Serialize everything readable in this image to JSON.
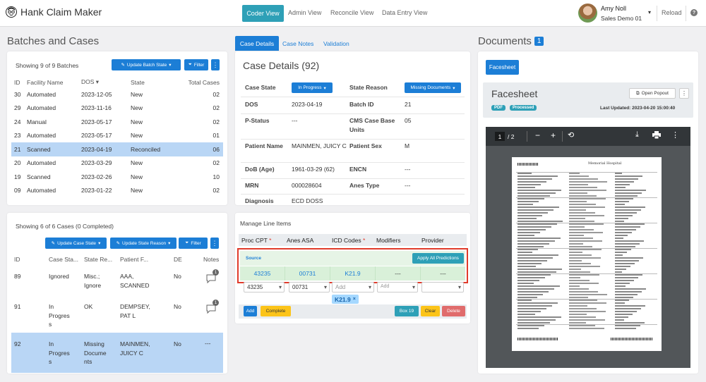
{
  "app": {
    "title": "Hank Claim Maker"
  },
  "nav": {
    "items": [
      "Coder View",
      "Admin View",
      "Reconcile View",
      "Data Entry View"
    ],
    "active": "Coder View"
  },
  "user": {
    "name": "Amy Noll",
    "org": "Sales Demo 01",
    "reload": "Reload",
    "help": "?"
  },
  "batches": {
    "title": "Batches and Cases",
    "summary": "Showing 9 of 9 Batches",
    "update_btn": "Update Batch State",
    "filter_btn": "Filter",
    "more": "⋮",
    "headers": [
      "ID",
      "Facility Name",
      "DOS",
      "State",
      "Total Cases"
    ],
    "rows": [
      [
        "30",
        "Automated",
        "2023-12-05",
        "New",
        "02"
      ],
      [
        "29",
        "Automated",
        "2023-11-16",
        "New",
        "02"
      ],
      [
        "24",
        "Manual",
        "2023-05-17",
        "New",
        "02"
      ],
      [
        "23",
        "Automated",
        "2023-05-17",
        "New",
        "01"
      ],
      [
        "21",
        "Scanned",
        "2023-04-19",
        "Reconciled",
        "06"
      ],
      [
        "20",
        "Automated",
        "2023-03-29",
        "New",
        "02"
      ],
      [
        "19",
        "Scanned",
        "2023-02-26",
        "New",
        "10"
      ],
      [
        "09",
        "Automated",
        "2023-01-22",
        "New",
        "02"
      ]
    ],
    "selected_row": 4
  },
  "cases": {
    "summary": "Showing 6 of 6 Cases (0 Completed)",
    "update_state_btn": "Update Case State",
    "update_reason_btn": "Update State Reason",
    "filter_btn": "Filter",
    "more": "⋮",
    "headers": [
      "ID",
      "Case Sta...",
      "State Re...",
      "Patient F...",
      "DE",
      "Notes"
    ],
    "rows": [
      {
        "id": "89",
        "state": "Ignored",
        "reason": "Misc.;\nIgnore",
        "patient": "AAA,\nSCANNED",
        "de": "No",
        "notes": "1"
      },
      {
        "id": "91",
        "state": "In\nProgres\ns",
        "reason": "OK",
        "patient": "DEMPSEY,\nPAT L",
        "de": "No",
        "notes": "1"
      },
      {
        "id": "92",
        "state": "In\nProgres\ns",
        "reason": "Missing\nDocume\nnts",
        "patient": "MAINMEN,\nJUICY C",
        "de": "No",
        "notes": "---"
      }
    ]
  },
  "case_tabs": [
    "Case Details",
    "Case Notes",
    "Validation"
  ],
  "case_details": {
    "title": "Case Details (92)",
    "case_state_label": "Case State",
    "case_state_value": "In Progress",
    "state_reason_label": "State Reason",
    "state_reason_value": "Missing Documents",
    "fields": [
      {
        "l1": "DOS",
        "v1": "2023-04-19",
        "l2": "Batch ID",
        "v2": "21"
      },
      {
        "l1": "P-Status",
        "v1": "---",
        "l2": "CMS Case Base Units",
        "v2": "05"
      },
      {
        "l1": "Patient Name",
        "v1": "MAINMEN, JUICY C",
        "l2": "Patient Sex",
        "v2": "M"
      },
      {
        "l1": "DoB (Age)",
        "v1": "1961-03-29 (62)",
        "l2": "ENCN",
        "v2": "---"
      },
      {
        "l1": "MRN",
        "v1": "000028604",
        "l2": "Anes Type",
        "v2": "---"
      },
      {
        "l1": "Diagnosis",
        "v1": "ECD DOSS DILUTATION/COLON",
        "l2": "",
        "v2": ""
      }
    ]
  },
  "line_items": {
    "title": "Manage Line Items",
    "headers": [
      "Proc CPT",
      "Anes ASA",
      "ICD Codes",
      "Modifiers",
      "Provider"
    ],
    "required_marker": "*",
    "source_label": "Source",
    "apply_btn": "Apply All Predictions",
    "predictions": [
      "43235",
      "00731",
      "K21.9",
      "---",
      "---"
    ],
    "inputs": {
      "proc": "43235",
      "anes": "00731",
      "icd_placeholder": "Add",
      "mod_placeholder": "Add"
    },
    "icd_tag": "K21.9",
    "add_btn": "Add",
    "complete_btn": "Complete",
    "box_btn": "Box 19",
    "clear_btn": "Clear",
    "delete_btn": "Delete"
  },
  "documents": {
    "title": "Documents",
    "count": "1",
    "tab": "Facesheet",
    "doc_title": "Facesheet",
    "badges": [
      "PDF",
      "Processed"
    ],
    "open_btn": "Open Popout",
    "more": "⋮",
    "updated": "Last Updated: 2023-04-20 15:00:40",
    "page_current": "1",
    "page_total": "/ 2",
    "hospital": "Memorial Hospital"
  },
  "colors": {
    "primary": "#1c7ed6",
    "accent": "#2ea0b7",
    "selected": "#b9d6f5",
    "highlight": "#e03b2b",
    "warning": "#fcc419",
    "danger": "#e06c6c",
    "success": "#37b24d"
  }
}
